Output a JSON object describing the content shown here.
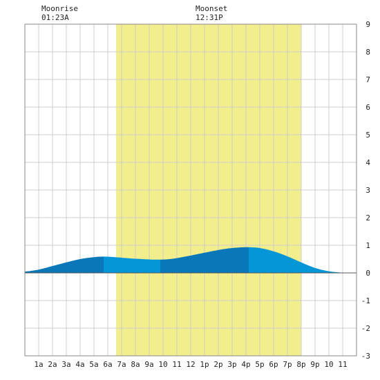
{
  "moon": {
    "rise_label": "Moonrise",
    "rise_time": "01:23A",
    "set_label": "Moonset",
    "set_time": "12:31P"
  },
  "chart_data": {
    "type": "area",
    "x_tick_labels": [
      "1a",
      "2a",
      "3a",
      "4a",
      "5a",
      "6a",
      "7a",
      "8a",
      "9a",
      "10",
      "11",
      "12",
      "1p",
      "2p",
      "3p",
      "4p",
      "5p",
      "6p",
      "7p",
      "8p",
      "9p",
      "10",
      "11"
    ],
    "y_ticks": [
      -3,
      -2,
      -1,
      0,
      1,
      2,
      3,
      4,
      5,
      6,
      7,
      8,
      9
    ],
    "xlim": [
      0,
      24
    ],
    "ylim": [
      -3,
      9
    ],
    "grid": true,
    "daylight": {
      "start_hour": 6.6,
      "end_hour": 20.0
    },
    "tide_points": [
      {
        "hour": 0,
        "height": 0.05
      },
      {
        "hour": 1,
        "height": 0.12
      },
      {
        "hour": 2,
        "height": 0.25
      },
      {
        "hour": 3,
        "height": 0.38
      },
      {
        "hour": 4,
        "height": 0.5
      },
      {
        "hour": 5,
        "height": 0.57
      },
      {
        "hour": 5.7,
        "height": 0.59
      },
      {
        "hour": 6.5,
        "height": 0.57
      },
      {
        "hour": 7.5,
        "height": 0.53
      },
      {
        "hour": 8.5,
        "height": 0.5
      },
      {
        "hour": 9.5,
        "height": 0.48
      },
      {
        "hour": 10.5,
        "height": 0.5
      },
      {
        "hour": 11.5,
        "height": 0.58
      },
      {
        "hour": 12.5,
        "height": 0.68
      },
      {
        "hour": 13.5,
        "height": 0.78
      },
      {
        "hour": 14.5,
        "height": 0.87
      },
      {
        "hour": 15.5,
        "height": 0.92
      },
      {
        "hour": 16.2,
        "height": 0.93
      },
      {
        "hour": 17,
        "height": 0.9
      },
      {
        "hour": 18,
        "height": 0.78
      },
      {
        "hour": 19,
        "height": 0.6
      },
      {
        "hour": 20,
        "height": 0.38
      },
      {
        "hour": 21,
        "height": 0.18
      },
      {
        "hour": 22,
        "height": 0.06
      },
      {
        "hour": 23,
        "height": 0.01
      },
      {
        "hour": 24,
        "height": 0.0
      }
    ],
    "segments": [
      {
        "from_hour": 0,
        "to_hour": 5.7,
        "color": "#0a78b8"
      },
      {
        "from_hour": 5.7,
        "to_hour": 9.8,
        "color": "#0596d8"
      },
      {
        "from_hour": 9.8,
        "to_hour": 16.2,
        "color": "#0a78b8"
      },
      {
        "from_hour": 16.2,
        "to_hour": 24,
        "color": "#0596d8"
      }
    ],
    "colors": {
      "daylight": "#f3ee8c",
      "grid": "#cccccc",
      "zero_line": "#555555",
      "plot_border": "#888888"
    }
  }
}
